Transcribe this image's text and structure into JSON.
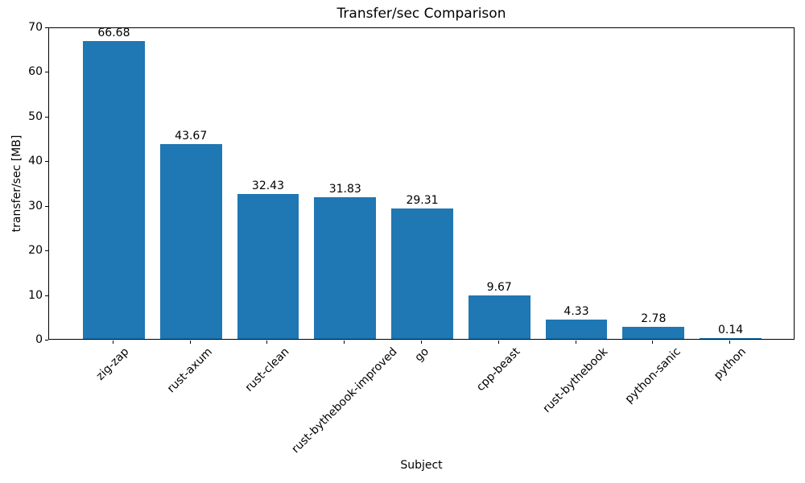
{
  "chart_data": {
    "type": "bar",
    "title": "Transfer/sec Comparison",
    "xlabel": "Subject",
    "ylabel": "transfer/sec [MB]",
    "categories": [
      "zig-zap",
      "rust-axum",
      "rust-clean",
      "rust-bythebook-improved",
      "go",
      "cpp-beast",
      "rust-bythebook",
      "python-sanic",
      "python"
    ],
    "values": [
      66.68,
      43.67,
      32.43,
      31.83,
      29.31,
      9.67,
      4.33,
      2.78,
      0.14
    ],
    "bar_value_labels": [
      "66.68",
      "43.67",
      "32.43",
      "31.83",
      "29.31",
      "9.67",
      "4.33",
      "2.78",
      "0.14"
    ],
    "ylim": [
      0,
      70
    ],
    "yticks": [
      0,
      10,
      20,
      30,
      40,
      50,
      60,
      70
    ],
    "bar_color": "#1f77b4",
    "grid": false,
    "legend": null,
    "x_tick_rotation_deg": 45
  }
}
